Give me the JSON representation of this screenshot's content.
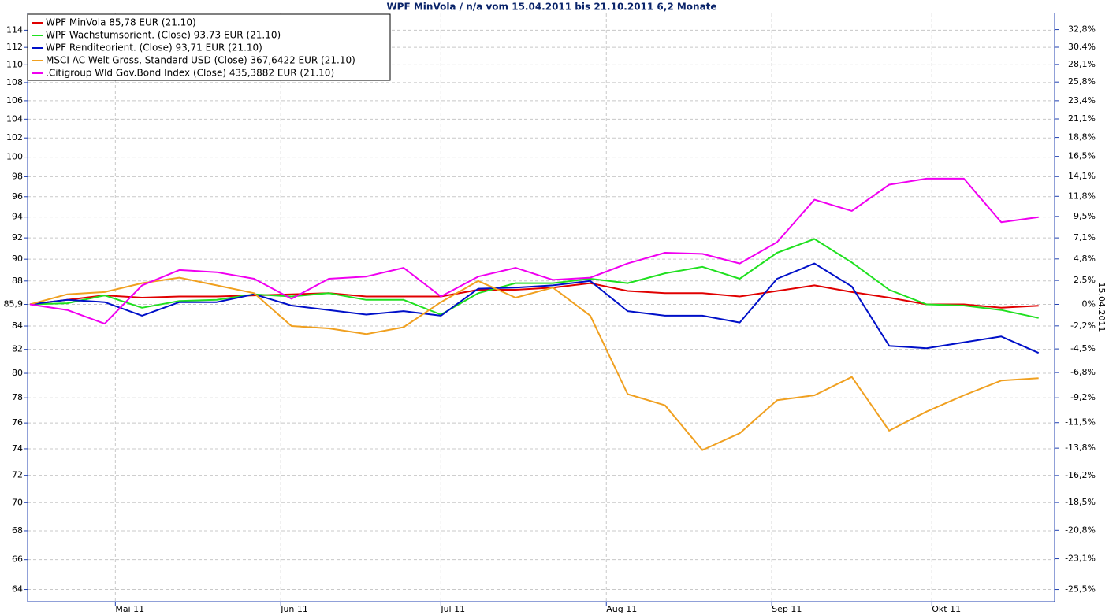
{
  "chart_data": {
    "type": "line",
    "title": "WPF MinVola / n/a vom 15.04.2011 bis 21.10.2011 6,2 Monate",
    "y2label": "15.04.2011",
    "x": [
      "2011-04-15",
      "2011-04-22",
      "2011-04-29",
      "2011-05-06",
      "2011-05-13",
      "2011-05-20",
      "2011-05-27",
      "2011-06-03",
      "2011-06-10",
      "2011-06-17",
      "2011-06-24",
      "2011-07-01",
      "2011-07-08",
      "2011-07-15",
      "2011-07-22",
      "2011-07-29",
      "2011-08-05",
      "2011-08-12",
      "2011-08-19",
      "2011-08-26",
      "2011-09-02",
      "2011-09-09",
      "2011-09-16",
      "2011-09-23",
      "2011-09-30",
      "2011-10-07",
      "2011-10-14",
      "2011-10-21"
    ],
    "xlim": [
      "2011-04-15",
      "2011-10-24"
    ],
    "xticks": [
      {
        "value": "2011-05-01",
        "label": "Mai 11"
      },
      {
        "value": "2011-06-01",
        "label": "Jun 11"
      },
      {
        "value": "2011-07-01",
        "label": "Jul 11"
      },
      {
        "value": "2011-08-01",
        "label": "Aug 11"
      },
      {
        "value": "2011-09-01",
        "label": "Sep 11"
      },
      {
        "value": "2011-10-01",
        "label": "Okt 11"
      }
    ],
    "ylim": [
      63.2,
      116
    ],
    "log_scale": true,
    "yticks": [
      64,
      66,
      68,
      70,
      72,
      74,
      76,
      78,
      80,
      82,
      84,
      {
        "value": 85.9,
        "label": "85,9"
      },
      88,
      90,
      92,
      94,
      96,
      98,
      100,
      102,
      104,
      106,
      108,
      110,
      112,
      114
    ],
    "y2lim": [
      -26.43,
      35.04
    ],
    "y2ticks": [
      {
        "value": -25.5,
        "label": "-25,5%"
      },
      {
        "value": -23.1,
        "label": "-23,1%"
      },
      {
        "value": -20.8,
        "label": "-20,8%"
      },
      {
        "value": -18.5,
        "label": "-18,5%"
      },
      {
        "value": -16.2,
        "label": "-16,2%"
      },
      {
        "value": -13.8,
        "label": "-13,8%"
      },
      {
        "value": -11.5,
        "label": "-11,5%"
      },
      {
        "value": -9.2,
        "label": "-9,2%"
      },
      {
        "value": -6.8,
        "label": "-6,8%"
      },
      {
        "value": -4.5,
        "label": "-4,5%"
      },
      {
        "value": -2.2,
        "label": "-2,2%"
      },
      {
        "value": 0,
        "label": "0%"
      },
      {
        "value": 2.5,
        "label": "2,5%"
      },
      {
        "value": 4.8,
        "label": "4,8%"
      },
      {
        "value": 7.1,
        "label": "7,1%"
      },
      {
        "value": 9.5,
        "label": "9,5%"
      },
      {
        "value": 11.8,
        "label": "11,8%"
      },
      {
        "value": 14.1,
        "label": "14,1%"
      },
      {
        "value": 16.5,
        "label": "16,5%"
      },
      {
        "value": 18.8,
        "label": "18,8%"
      },
      {
        "value": 21.1,
        "label": "21,1%"
      },
      {
        "value": 23.4,
        "label": "23,4%"
      },
      {
        "value": 25.8,
        "label": "25,8%"
      },
      {
        "value": 28.1,
        "label": "28,1%"
      },
      {
        "value": 30.4,
        "label": "30,4%"
      },
      {
        "value": 32.8,
        "label": "32,8%"
      }
    ],
    "grid": true,
    "legend_position": "top-left",
    "series": [
      {
        "name": "WPF MinVola 85,78 EUR (21.10)",
        "color": "#e00000",
        "values": [
          85.9,
          86.3,
          86.7,
          86.5,
          86.6,
          86.6,
          86.7,
          86.8,
          86.9,
          86.6,
          86.6,
          86.6,
          87.2,
          87.2,
          87.4,
          87.8,
          87.1,
          86.9,
          86.9,
          86.6,
          87.1,
          87.6,
          87.0,
          86.5,
          85.9,
          85.9,
          85.6,
          85.78
        ]
      },
      {
        "name": "WPF Wachstumsorient. (Close) 93,73 EUR (21.10)",
        "color": "#20e020",
        "values": [
          85.9,
          86.0,
          86.7,
          85.6,
          86.2,
          86.3,
          86.8,
          86.6,
          86.9,
          86.3,
          86.3,
          85.0,
          86.9,
          87.8,
          87.8,
          88.2,
          87.8,
          88.7,
          89.3,
          88.2,
          90.6,
          91.9,
          89.7,
          87.2,
          85.9,
          85.8,
          85.4,
          84.7
        ]
      },
      {
        "name": "WPF Renditeorient. (Close) 93,71 EUR (21.10)",
        "color": "#0010c8",
        "values": [
          85.9,
          86.3,
          86.1,
          84.9,
          86.1,
          86.1,
          86.8,
          85.8,
          85.4,
          85.0,
          85.3,
          84.9,
          87.3,
          87.4,
          87.6,
          88.0,
          85.3,
          84.9,
          84.9,
          84.3,
          88.2,
          89.6,
          87.5,
          82.3,
          82.1,
          82.6,
          83.1,
          81.7
        ]
      },
      {
        "name": "MSCI AC Welt Gross, Standard USD (Close) 367,6422 EUR (21.10)",
        "color": "#f0a020",
        "values": [
          85.9,
          86.8,
          87.0,
          87.8,
          88.3,
          87.6,
          86.9,
          84.0,
          83.8,
          83.3,
          83.9,
          86.1,
          88.0,
          86.5,
          87.4,
          84.9,
          78.3,
          77.4,
          73.9,
          75.2,
          77.8,
          78.2,
          79.7,
          75.4,
          76.9,
          78.2,
          79.4,
          79.6
        ]
      },
      {
        "name": ".Citigroup Wld Gov.Bond Index (Close) 435,3882 EUR (21.10)",
        "color": "#f000f0",
        "values": [
          85.9,
          85.4,
          84.2,
          87.6,
          89.0,
          88.8,
          88.2,
          86.4,
          88.2,
          88.4,
          89.2,
          86.6,
          88.4,
          89.2,
          88.1,
          88.3,
          89.6,
          90.6,
          90.5,
          89.6,
          91.6,
          95.7,
          94.6,
          97.2,
          97.8,
          97.8,
          93.5,
          94.0
        ]
      }
    ]
  }
}
